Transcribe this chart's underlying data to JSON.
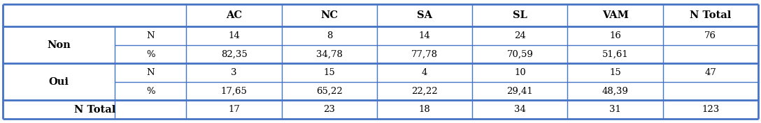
{
  "col_headers": [
    "AC",
    "NC",
    "SA",
    "SL",
    "VAM",
    "N Total"
  ],
  "row_groups": [
    {
      "label": "Non",
      "subrows": [
        {
          "sublabel": "N",
          "values": [
            "14",
            "8",
            "14",
            "24",
            "16",
            "76"
          ]
        },
        {
          "sublabel": "%",
          "values": [
            "82,35",
            "34,78",
            "77,78",
            "70,59",
            "51,61",
            ""
          ]
        }
      ]
    },
    {
      "label": "Oui",
      "subrows": [
        {
          "sublabel": "N",
          "values": [
            "3",
            "15",
            "4",
            "10",
            "15",
            "47"
          ]
        },
        {
          "sublabel": "%",
          "values": [
            "17,65",
            "65,22",
            "22,22",
            "29,41",
            "48,39",
            ""
          ]
        }
      ]
    }
  ],
  "total_row": [
    "17",
    "23",
    "18",
    "34",
    "31",
    "123"
  ],
  "total_label": "N Total",
  "border_color": "#4472c4",
  "thick_lw": 2.0,
  "thin_lw": 1.0,
  "font_size": 9.5,
  "bold_font_size": 10.5,
  "figure_width": 10.88,
  "figure_height": 1.77,
  "dpi": 100
}
